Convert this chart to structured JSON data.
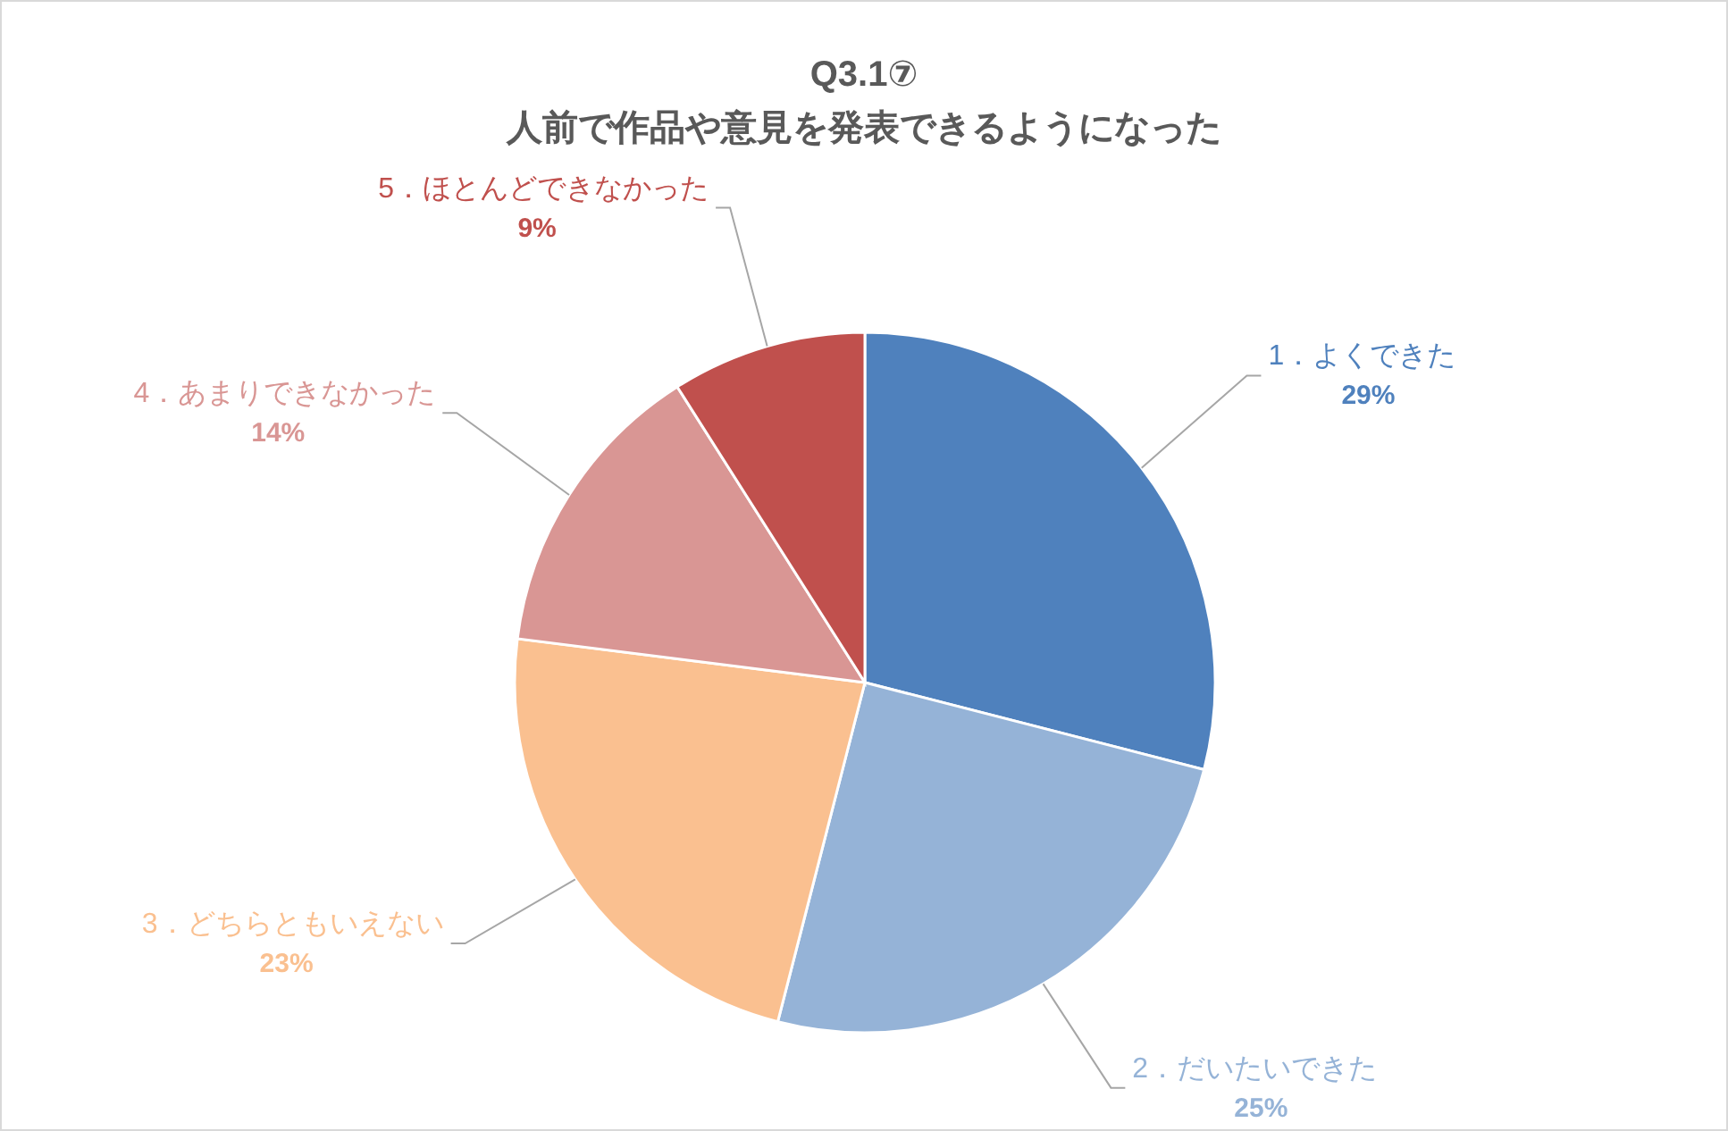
{
  "chart_data": {
    "type": "pie",
    "title": "Q3.1⑦",
    "subtitle": "人前で作品や意見を発表できるようになった",
    "categories": [
      "1．よくできた",
      "2．だいたいできた",
      "3．どちらともいえない",
      "4．あまりできなかった",
      "5．ほとんどできなかった"
    ],
    "values": [
      29,
      25,
      23,
      14,
      9
    ],
    "colors": [
      "#4f81bd",
      "#95b3d7",
      "#fac090",
      "#d99694",
      "#c0504d"
    ],
    "value_labels": [
      "29%",
      "25%",
      "23%",
      "14%",
      "9%"
    ]
  }
}
